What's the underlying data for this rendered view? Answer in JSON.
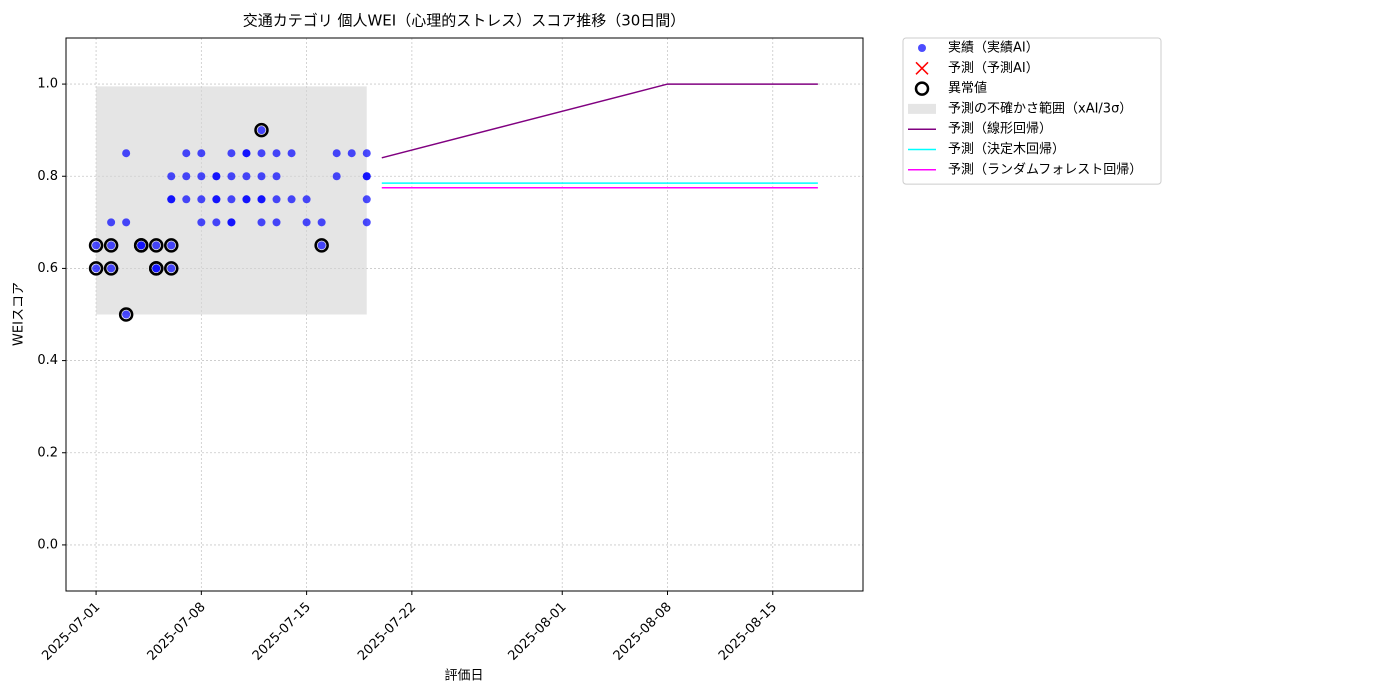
{
  "chart_data": {
    "type": "scatter",
    "title": "交通カテゴリ 個人WEI（心理的ストレス）スコア推移（30日間）",
    "x_label": "評価日",
    "y_label": "WEIスコア",
    "xlim": [
      "2025-06-29",
      "2025-08-21"
    ],
    "xticks": [
      "2025-07-01",
      "2025-07-08",
      "2025-07-15",
      "2025-07-22",
      "2025-08-01",
      "2025-08-08",
      "2025-08-15"
    ],
    "ylim": [
      -0.1,
      1.1
    ],
    "yticks": [
      {
        "value": 0,
        "label": "0.0"
      },
      0.2,
      0.4,
      0.6,
      0.8,
      {
        "value": 1,
        "label": "1.0"
      }
    ],
    "grid": true,
    "legend": "outside-upper-right",
    "series": [
      {
        "name": "実績（実績AI）",
        "type": "scatter",
        "marker": "dot",
        "color": "#0000ff",
        "x": [
          "2025-07-01",
          "2025-07-01",
          "2025-07-02",
          "2025-07-02",
          "2025-07-02",
          "2025-07-03",
          "2025-07-03",
          "2025-07-03",
          "2025-07-04",
          "2025-07-04",
          "2025-07-05",
          "2025-07-05",
          "2025-07-05",
          "2025-07-06",
          "2025-07-06",
          "2025-07-06",
          "2025-07-06",
          "2025-07-06",
          "2025-07-07",
          "2025-07-07",
          "2025-07-07",
          "2025-07-08",
          "2025-07-08",
          "2025-07-08",
          "2025-07-08",
          "2025-07-09",
          "2025-07-09",
          "2025-07-09",
          "2025-07-09",
          "2025-07-09",
          "2025-07-10",
          "2025-07-10",
          "2025-07-10",
          "2025-07-10",
          "2025-07-10",
          "2025-07-11",
          "2025-07-11",
          "2025-07-11",
          "2025-07-11",
          "2025-07-11",
          "2025-07-12",
          "2025-07-12",
          "2025-07-12",
          "2025-07-12",
          "2025-07-12",
          "2025-07-12",
          "2025-07-13",
          "2025-07-13",
          "2025-07-13",
          "2025-07-13",
          "2025-07-14",
          "2025-07-14",
          "2025-07-15",
          "2025-07-15",
          "2025-07-16",
          "2025-07-16",
          "2025-07-17",
          "2025-07-17",
          "2025-07-18",
          "2025-07-19",
          "2025-07-19",
          "2025-07-19",
          "2025-07-19",
          "2025-07-19"
        ],
        "values": [
          0.65,
          0.6,
          0.7,
          0.65,
          0.6,
          0.85,
          0.7,
          0.5,
          0.65,
          0.65,
          0.6,
          0.65,
          0.6,
          0.75,
          0.8,
          0.75,
          0.65,
          0.6,
          0.75,
          0.85,
          0.8,
          0.8,
          0.7,
          0.75,
          0.85,
          0.8,
          0.75,
          0.7,
          0.8,
          0.75,
          0.85,
          0.7,
          0.8,
          0.7,
          0.75,
          0.75,
          0.85,
          0.8,
          0.85,
          0.75,
          0.8,
          0.75,
          0.9,
          0.75,
          0.85,
          0.7,
          0.75,
          0.7,
          0.85,
          0.8,
          0.85,
          0.75,
          0.75,
          0.7,
          0.7,
          0.65,
          0.85,
          0.8,
          0.85,
          0.8,
          0.75,
          0.85,
          0.8,
          0.7
        ]
      },
      {
        "name": "予測（予測AI）",
        "type": "scatter",
        "marker": "cross",
        "color": "#ff0000",
        "x": [],
        "values": []
      },
      {
        "name": "異常値",
        "type": "scatter",
        "marker": "ring",
        "color": "#000000",
        "x": [
          "2025-07-01",
          "2025-07-01",
          "2025-07-02",
          "2025-07-02",
          "2025-07-03",
          "2025-07-04",
          "2025-07-04",
          "2025-07-05",
          "2025-07-05",
          "2025-07-05",
          "2025-07-06",
          "2025-07-06",
          "2025-07-12",
          "2025-07-16"
        ],
        "values": [
          0.65,
          0.6,
          0.65,
          0.6,
          0.5,
          0.65,
          0.65,
          0.6,
          0.65,
          0.6,
          0.65,
          0.6,
          0.9,
          0.65
        ]
      },
      {
        "name": "予測の不確かさ範囲（xAI/3σ）",
        "type": "band",
        "color": "#d3d3d3",
        "x": [
          "2025-07-01",
          "2025-07-19"
        ],
        "lower": [
          0.5,
          0.5
        ],
        "upper": [
          0.995,
          0.995
        ]
      },
      {
        "name": "予測（線形回帰）",
        "type": "line",
        "color": "#800080",
        "x": [
          "2025-07-20",
          "2025-08-08",
          "2025-08-18"
        ],
        "values": [
          0.84,
          1,
          1
        ]
      },
      {
        "name": "予測（決定木回帰）",
        "type": "line",
        "color": "#00ffff",
        "x": [
          "2025-07-20",
          "2025-08-18"
        ],
        "values": [
          0.785,
          0.785
        ]
      },
      {
        "name": "予測（ランダムフォレスト回帰）",
        "type": "line",
        "color": "#ff00ff",
        "x": [
          "2025-07-20",
          "2025-08-18"
        ],
        "values": [
          0.775,
          0.775
        ]
      }
    ]
  }
}
